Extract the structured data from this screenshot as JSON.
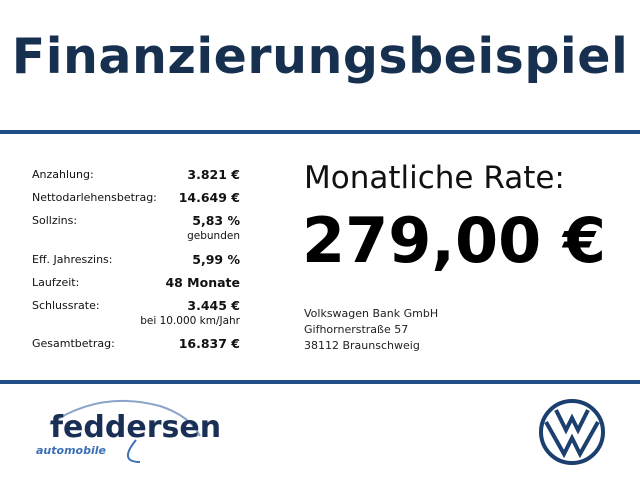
{
  "header": {
    "title": "Finanzierungsbeispiel"
  },
  "financing": {
    "rows": [
      {
        "label": "Anzahlung:",
        "value": "3.821 €"
      },
      {
        "label": "Nettodarlehensbetrag:",
        "value": "14.649 €"
      },
      {
        "label": "Sollzins:",
        "value": "5,83 %",
        "note": "gebunden"
      },
      {
        "label": "Eff. Jahreszins:",
        "value": "5,99 %"
      },
      {
        "label": "Laufzeit:",
        "value": "48 Monate"
      },
      {
        "label": "Schlussrate:",
        "value": "3.445 €",
        "note": "bei 10.000 km/Jahr"
      },
      {
        "label": "Gesamtbetrag:",
        "value": "16.837 €"
      }
    ]
  },
  "rate": {
    "label": "Monatliche Rate:",
    "value": "279,00 €"
  },
  "bank": {
    "lines": [
      "Volkswagen Bank GmbH",
      "Gifhornerstraße 57",
      "38112 Braunschweig"
    ]
  },
  "dealer": {
    "name": "feddersen",
    "subtitle": "automobile"
  }
}
